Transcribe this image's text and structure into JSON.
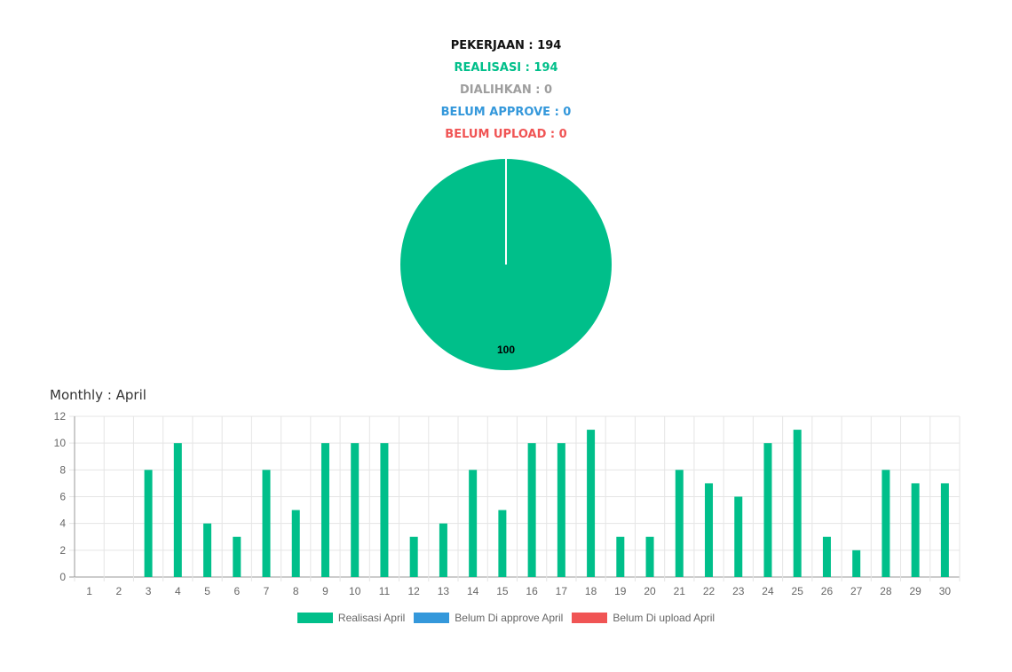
{
  "summary": {
    "pekerjaan": "PEKERJAAN : 194",
    "realisasi": "REALISASI : 194",
    "dialihkan": "DIALIHKAN : 0",
    "belum_approve": "BELUM APPROVE : 0",
    "belum_upload": "BELUM UPLOAD : 0"
  },
  "colors": {
    "pekerjaan": "#111111",
    "realisasi": "#00bf8a",
    "dialihkan": "#9e9e9e",
    "belum_approve": "#3498db",
    "belum_upload": "#f05454"
  },
  "bar_title": "Monthly : April",
  "chart_data": [
    {
      "type": "pie",
      "categories": [
        "Realisasi",
        "Dialihkan",
        "Belum Approve",
        "Belum Upload"
      ],
      "values": [
        100,
        0,
        0,
        0
      ],
      "data_labels": [
        "100"
      ],
      "colors": [
        "#00bf8a",
        "#9e9e9e",
        "#3498db",
        "#f05454"
      ]
    },
    {
      "type": "bar",
      "title": "Monthly : April",
      "categories": [
        "1",
        "2",
        "3",
        "4",
        "5",
        "6",
        "7",
        "8",
        "9",
        "10",
        "11",
        "12",
        "13",
        "14",
        "15",
        "16",
        "17",
        "18",
        "19",
        "20",
        "21",
        "22",
        "23",
        "24",
        "25",
        "26",
        "27",
        "28",
        "29",
        "30"
      ],
      "series": [
        {
          "name": "Realisasi April",
          "color": "#00bf8a",
          "values": [
            0,
            0,
            8,
            10,
            4,
            3,
            8,
            5,
            10,
            10,
            10,
            3,
            4,
            8,
            5,
            10,
            10,
            11,
            3,
            3,
            8,
            7,
            6,
            10,
            11,
            3,
            2,
            8,
            7,
            7
          ]
        },
        {
          "name": "Belum Di approve April",
          "color": "#3498db",
          "values": [
            0,
            0,
            0,
            0,
            0,
            0,
            0,
            0,
            0,
            0,
            0,
            0,
            0,
            0,
            0,
            0,
            0,
            0,
            0,
            0,
            0,
            0,
            0,
            0,
            0,
            0,
            0,
            0,
            0,
            0
          ]
        },
        {
          "name": "Belum Di upload April",
          "color": "#f05454",
          "values": [
            0,
            0,
            0,
            0,
            0,
            0,
            0,
            0,
            0,
            0,
            0,
            0,
            0,
            0,
            0,
            0,
            0,
            0,
            0,
            0,
            0,
            0,
            0,
            0,
            0,
            0,
            0,
            0,
            0,
            0
          ]
        }
      ],
      "ylim": [
        0,
        12
      ],
      "yticks": [
        "0",
        "2",
        "4",
        "6",
        "8",
        "10",
        "12"
      ],
      "grid": true,
      "legend": "bottom"
    }
  ]
}
